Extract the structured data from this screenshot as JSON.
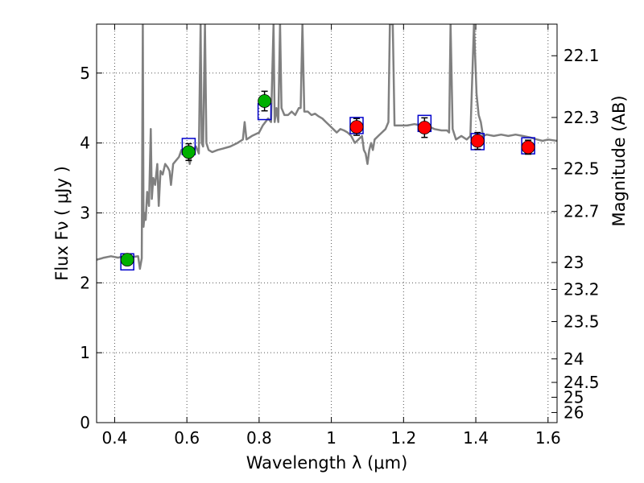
{
  "chart_data": {
    "type": "scatter",
    "xlabel": "Wavelength  λ (μm)",
    "ylabel": "Flux  Fν  ( μJy )",
    "y2label": "Magnitude (AB)",
    "xlim": [
      0.35,
      1.625
    ],
    "ylim": [
      0,
      5.7
    ],
    "grid": true,
    "x_ticks": [
      0.4,
      0.6,
      0.8,
      1.0,
      1.2,
      1.4,
      1.6
    ],
    "x_tick_labels": [
      "0.4",
      "0.6",
      "0.8",
      "1",
      "1.2",
      "1.4",
      "1.6"
    ],
    "y_ticks": [
      0,
      1,
      2,
      3,
      4,
      5
    ],
    "y_tick_labels": [
      "0",
      "1",
      "2",
      "3",
      "4",
      "5"
    ],
    "mag_tick_labels": [
      "22.1",
      "22.3",
      "22.5",
      "22.7",
      "23",
      "23.2",
      "23.5",
      "24",
      "24.5",
      "25",
      "26"
    ],
    "colors": {
      "spectrum": "#808080",
      "model_box": "#0000cc",
      "optical_points": "#00b000",
      "nir_points": "#ff0000",
      "errorbar": "#000000",
      "grid": "#555555"
    },
    "series": [
      {
        "type": "line",
        "points": [
          [
            0.35,
            2.33
          ],
          [
            0.37,
            2.36
          ],
          [
            0.39,
            2.38
          ],
          [
            0.41,
            2.36
          ],
          [
            0.43,
            2.39
          ],
          [
            0.45,
            2.37
          ],
          [
            0.465,
            2.38
          ],
          [
            0.47,
            2.2
          ],
          [
            0.475,
            2.35
          ],
          [
            0.478,
            5.7
          ],
          [
            0.48,
            2.8
          ],
          [
            0.483,
            3.0
          ],
          [
            0.486,
            2.9
          ],
          [
            0.49,
            3.3
          ],
          [
            0.495,
            3.1
          ],
          [
            0.5,
            4.2
          ],
          [
            0.503,
            3.2
          ],
          [
            0.507,
            3.5
          ],
          [
            0.512,
            3.4
          ],
          [
            0.518,
            3.7
          ],
          [
            0.522,
            3.1
          ],
          [
            0.527,
            3.6
          ],
          [
            0.533,
            3.55
          ],
          [
            0.54,
            3.7
          ],
          [
            0.547,
            3.65
          ],
          [
            0.552,
            3.6
          ],
          [
            0.556,
            3.4
          ],
          [
            0.562,
            3.7
          ],
          [
            0.57,
            3.75
          ],
          [
            0.578,
            3.8
          ],
          [
            0.585,
            3.9
          ],
          [
            0.592,
            3.85
          ],
          [
            0.6,
            3.9
          ],
          [
            0.608,
            3.7
          ],
          [
            0.615,
            3.9
          ],
          [
            0.625,
            3.95
          ],
          [
            0.633,
            3.85
          ],
          [
            0.638,
            5.7
          ],
          [
            0.641,
            4.0
          ],
          [
            0.645,
            3.95
          ],
          [
            0.65,
            5.7
          ],
          [
            0.654,
            4.0
          ],
          [
            0.66,
            3.9
          ],
          [
            0.67,
            3.87
          ],
          [
            0.685,
            3.9
          ],
          [
            0.7,
            3.92
          ],
          [
            0.72,
            3.95
          ],
          [
            0.74,
            4.0
          ],
          [
            0.755,
            4.05
          ],
          [
            0.76,
            4.3
          ],
          [
            0.765,
            4.05
          ],
          [
            0.78,
            4.1
          ],
          [
            0.8,
            4.15
          ],
          [
            0.81,
            4.25
          ],
          [
            0.825,
            4.35
          ],
          [
            0.833,
            4.3
          ],
          [
            0.84,
            5.7
          ],
          [
            0.843,
            4.3
          ],
          [
            0.848,
            4.5
          ],
          [
            0.853,
            4.3
          ],
          [
            0.858,
            5.7
          ],
          [
            0.862,
            4.5
          ],
          [
            0.87,
            4.4
          ],
          [
            0.88,
            4.4
          ],
          [
            0.89,
            4.45
          ],
          [
            0.9,
            4.4
          ],
          [
            0.91,
            4.5
          ],
          [
            0.915,
            4.5
          ],
          [
            0.92,
            5.7
          ],
          [
            0.925,
            4.45
          ],
          [
            0.935,
            4.45
          ],
          [
            0.945,
            4.4
          ],
          [
            0.955,
            4.42
          ],
          [
            0.965,
            4.38
          ],
          [
            0.975,
            4.35
          ],
          [
            0.985,
            4.3
          ],
          [
            0.995,
            4.25
          ],
          [
            1.005,
            4.2
          ],
          [
            1.015,
            4.15
          ],
          [
            1.025,
            4.2
          ],
          [
            1.035,
            4.18
          ],
          [
            1.045,
            4.15
          ],
          [
            1.055,
            4.1
          ],
          [
            1.065,
            4.0
          ],
          [
            1.075,
            4.05
          ],
          [
            1.085,
            4.1
          ],
          [
            1.09,
            3.9
          ],
          [
            1.095,
            3.85
          ],
          [
            1.1,
            3.7
          ],
          [
            1.105,
            3.9
          ],
          [
            1.11,
            4.0
          ],
          [
            1.115,
            3.9
          ],
          [
            1.12,
            4.05
          ],
          [
            1.13,
            4.1
          ],
          [
            1.14,
            4.15
          ],
          [
            1.15,
            4.2
          ],
          [
            1.158,
            4.3
          ],
          [
            1.162,
            5.7
          ],
          [
            1.17,
            5.7
          ],
          [
            1.175,
            4.25
          ],
          [
            1.19,
            4.25
          ],
          [
            1.21,
            4.25
          ],
          [
            1.23,
            4.27
          ],
          [
            1.25,
            4.25
          ],
          [
            1.265,
            4.25
          ],
          [
            1.285,
            4.2
          ],
          [
            1.305,
            4.18
          ],
          [
            1.32,
            4.18
          ],
          [
            1.326,
            4.15
          ],
          [
            1.33,
            5.7
          ],
          [
            1.336,
            4.2
          ],
          [
            1.345,
            4.05
          ],
          [
            1.36,
            4.1
          ],
          [
            1.375,
            4.05
          ],
          [
            1.385,
            4.1
          ],
          [
            1.395,
            5.7
          ],
          [
            1.402,
            4.7
          ],
          [
            1.408,
            4.4
          ],
          [
            1.414,
            4.3
          ],
          [
            1.42,
            4.1
          ],
          [
            1.43,
            4.12
          ],
          [
            1.45,
            4.1
          ],
          [
            1.47,
            4.12
          ],
          [
            1.49,
            4.1
          ],
          [
            1.51,
            4.12
          ],
          [
            1.53,
            4.1
          ],
          [
            1.55,
            4.08
          ],
          [
            1.57,
            4.05
          ],
          [
            1.585,
            4.03
          ],
          [
            1.6,
            4.05
          ],
          [
            1.625,
            4.03
          ]
        ]
      },
      {
        "type": "model_boxes",
        "points": [
          [
            0.435,
            2.3
          ],
          [
            0.605,
            3.95
          ],
          [
            0.815,
            4.45
          ],
          [
            1.07,
            4.25
          ],
          [
            1.258,
            4.28
          ],
          [
            1.405,
            4.02
          ],
          [
            1.545,
            3.96
          ]
        ]
      },
      {
        "type": "scatter",
        "points": [
          {
            "x": 0.435,
            "y": 2.33,
            "err": 0.05
          },
          {
            "x": 0.605,
            "y": 3.87,
            "err": 0.12
          },
          {
            "x": 0.815,
            "y": 4.6,
            "err": 0.14
          }
        ]
      },
      {
        "type": "scatter",
        "points": [
          {
            "x": 1.07,
            "y": 4.23,
            "err": 0.12
          },
          {
            "x": 1.258,
            "y": 4.22,
            "err": 0.14
          },
          {
            "x": 1.405,
            "y": 4.03,
            "err": 0.12
          },
          {
            "x": 1.545,
            "y": 3.94,
            "err": 0.1
          }
        ]
      }
    ]
  }
}
